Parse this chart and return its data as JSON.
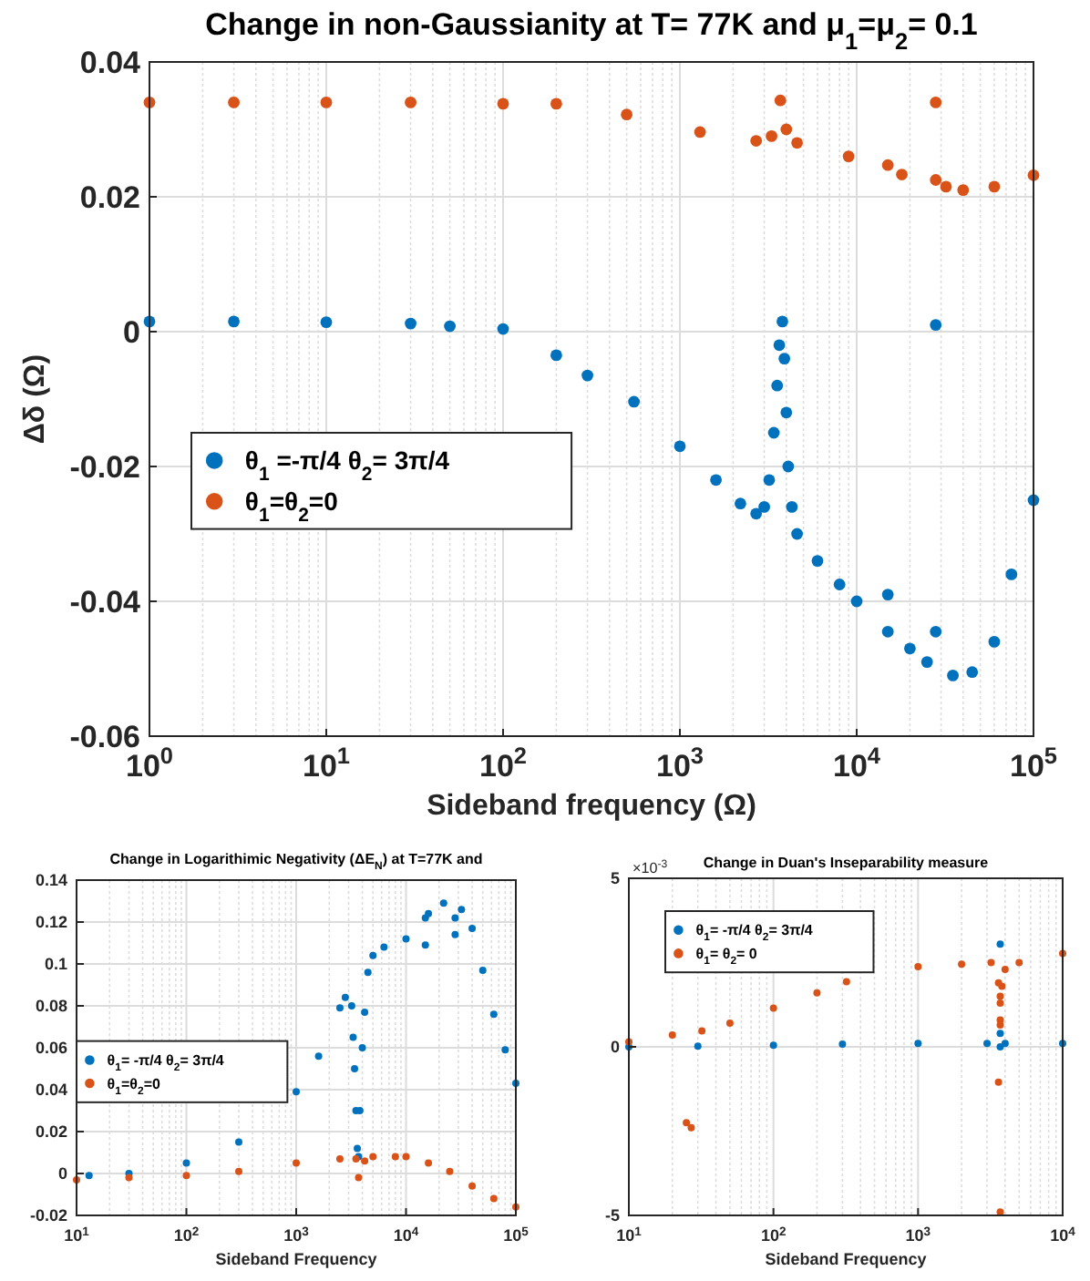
{
  "chart_data": [
    {
      "type": "scatter",
      "title": "Change in non-Gaussianity at T= 77K and μ$_{1}$=μ$_{2}$= 0.1",
      "xlabel": "Sideband frequency (Ω)",
      "ylabel": "Δδ (Ω)",
      "log": "x",
      "xlim": [
        1,
        100000
      ],
      "ylim": [
        -0.06,
        0.04
      ],
      "xticks": [
        {
          "value": 1,
          "label": "10$^{0}$"
        },
        {
          "value": 10,
          "label": "10$^{1}$"
        },
        {
          "value": 100,
          "label": "10$^{2}$"
        },
        {
          "value": 1000,
          "label": "10$^{3}$"
        },
        {
          "value": 10000,
          "label": "10$^{4}$"
        },
        {
          "value": 100000,
          "label": "10$^{5}$"
        }
      ],
      "yticks": [
        -0.06,
        -0.04,
        -0.02,
        0,
        0.02,
        0.04
      ],
      "grid": true,
      "legend": "left",
      "marker": "circle",
      "series": [
        {
          "name": "θ$_{1}$ =-π/4 θ$_{2}$= 3π/4",
          "color": "#0072bd",
          "x": [
            1,
            3,
            10,
            30,
            50,
            100,
            200,
            300,
            550,
            1000,
            1600,
            2200,
            2700,
            3000,
            3200,
            3400,
            3550,
            3650,
            3800,
            3900,
            4000,
            4100,
            4300,
            4600,
            6000,
            8000,
            10000,
            15000,
            20000,
            25000,
            35000,
            45000,
            60000,
            75000,
            100000,
            15000,
            28000,
            28000
          ],
          "values": [
            0.0015,
            0.0015,
            0.0014,
            0.0012,
            0.0008,
            0.0004,
            -0.0035,
            -0.0065,
            -0.0104,
            -0.017,
            -0.022,
            -0.0255,
            -0.027,
            -0.026,
            -0.022,
            -0.015,
            -0.008,
            -0.002,
            0.0015,
            -0.004,
            -0.012,
            -0.02,
            -0.026,
            -0.03,
            -0.034,
            -0.0375,
            -0.04,
            -0.0445,
            -0.047,
            -0.049,
            -0.051,
            -0.0505,
            -0.046,
            -0.036,
            -0.025,
            -0.039,
            0.001,
            -0.0445
          ]
        },
        {
          "name": "θ$_{1}$=θ$_{2}$=0",
          "color": "#d95319",
          "x": [
            1,
            3,
            10,
            30,
            100,
            200,
            500,
            1300,
            2700,
            3300,
            3700,
            4000,
            4600,
            9000,
            18000,
            32000,
            40000,
            60000,
            100000,
            15000,
            28000,
            28000
          ],
          "values": [
            0.034,
            0.034,
            0.034,
            0.034,
            0.0338,
            0.0338,
            0.0322,
            0.0296,
            0.0283,
            0.029,
            0.0343,
            0.03,
            0.028,
            0.026,
            0.0233,
            0.0215,
            0.021,
            0.0215,
            0.0232,
            0.0247,
            0.034,
            0.0225
          ]
        }
      ]
    },
    {
      "type": "scatter",
      "title": "Change in Logarithimic Negativity (ΔE$_{N}$) at T=77K and",
      "xlabel": "Sideband Frequency",
      "log": "x",
      "xlim": [
        10,
        100000
      ],
      "ylim": [
        -0.02,
        0.14
      ],
      "xticks": [
        {
          "value": 10,
          "label": "10$^{1}$"
        },
        {
          "value": 100,
          "label": "10$^{2}$"
        },
        {
          "value": 1000,
          "label": "10$^{3}$"
        },
        {
          "value": 10000,
          "label": "10$^{4}$"
        },
        {
          "value": 100000,
          "label": "10$^{5}$"
        }
      ],
      "yticks": [
        -0.02,
        0,
        0.02,
        0.04,
        0.06,
        0.08,
        0.1,
        0.12,
        0.14
      ],
      "grid": true,
      "legend": "left",
      "marker": "circle",
      "series": [
        {
          "name": "θ$_{1}$= -π/4 θ$_{2}$= 3π/4",
          "color": "#0072bd",
          "x": [
            13,
            30,
            100,
            300,
            1000,
            1600,
            2500,
            2800,
            3200,
            3300,
            3400,
            3500,
            3600,
            3700,
            3800,
            4000,
            4200,
            4500,
            5000,
            6300,
            10000,
            16000,
            22000,
            32000,
            40000,
            50000,
            63000,
            80000,
            100000,
            15000,
            15000,
            28000,
            28000
          ],
          "values": [
            -0.001,
            0,
            0.005,
            0.015,
            0.039,
            0.056,
            0.079,
            0.084,
            0.08,
            0.065,
            0.05,
            0.03,
            0.012,
            0.008,
            0.03,
            0.06,
            0.077,
            0.096,
            0.104,
            0.108,
            0.112,
            0.124,
            0.129,
            0.126,
            0.117,
            0.097,
            0.076,
            0.059,
            0.043,
            0.109,
            0.122,
            0.114,
            0.122
          ]
        },
        {
          "name": "θ$_{1}$=θ$_{2}$=0",
          "color": "#d95319",
          "x": [
            10,
            30,
            100,
            300,
            1000,
            2500,
            3500,
            3700,
            4200,
            5000,
            8000,
            10000,
            16000,
            25000,
            40000,
            63000,
            100000
          ],
          "values": [
            -0.003,
            -0.002,
            -0.001,
            0.001,
            0.005,
            0.007,
            0.007,
            -0.002,
            0.006,
            0.008,
            0.008,
            0.008,
            0.005,
            0.001,
            -0.006,
            -0.012,
            -0.016
          ]
        }
      ]
    },
    {
      "type": "scatter",
      "title": "Change in Duan's Inseparability measure",
      "xlabel": "Sideband Frequency",
      "annotations": [
        "×10$^{-3}$"
      ],
      "log": "x",
      "xlim": [
        10,
        10000
      ],
      "ylim": [
        -5,
        5
      ],
      "xticks": [
        {
          "value": 10,
          "label": "10$^{1}$"
        },
        {
          "value": 100,
          "label": "10$^{2}$"
        },
        {
          "value": 1000,
          "label": "10$^{3}$"
        },
        {
          "value": 10000,
          "label": "10$^{4}$"
        }
      ],
      "yticks": [
        -5,
        0,
        5
      ],
      "grid": true,
      "legend": "top left",
      "marker": "circle",
      "series": [
        {
          "name": "θ$_{1}$= -π/4 θ$_{2}$= 3π/4",
          "color": "#0072bd",
          "x": [
            10,
            30,
            100,
            300,
            1000,
            3000,
            3700,
            4000,
            10000,
            3700,
            3700
          ],
          "values": [
            0,
            0.02,
            0.05,
            0.08,
            0.1,
            0.1,
            0,
            0.1,
            0.1,
            3.05,
            0.4
          ]
        },
        {
          "name": "θ$_{1}$=  θ$_{2}$= 0",
          "color": "#d95319",
          "x": [
            10,
            20,
            32,
            50,
            100,
            200,
            320,
            1000,
            2000,
            3200,
            3600,
            3700,
            3800,
            4000,
            5000,
            10000,
            3700,
            3700,
            3700,
            3600,
            3700,
            25,
            27
          ],
          "values": [
            0.15,
            0.35,
            0.47,
            0.7,
            1.15,
            1.6,
            1.93,
            2.38,
            2.45,
            2.5,
            1.9,
            1.5,
            1.8,
            2.3,
            2.5,
            2.77,
            1.3,
            0.8,
            0.65,
            -1.05,
            -4.9,
            -2.25,
            -2.4
          ]
        }
      ]
    }
  ]
}
